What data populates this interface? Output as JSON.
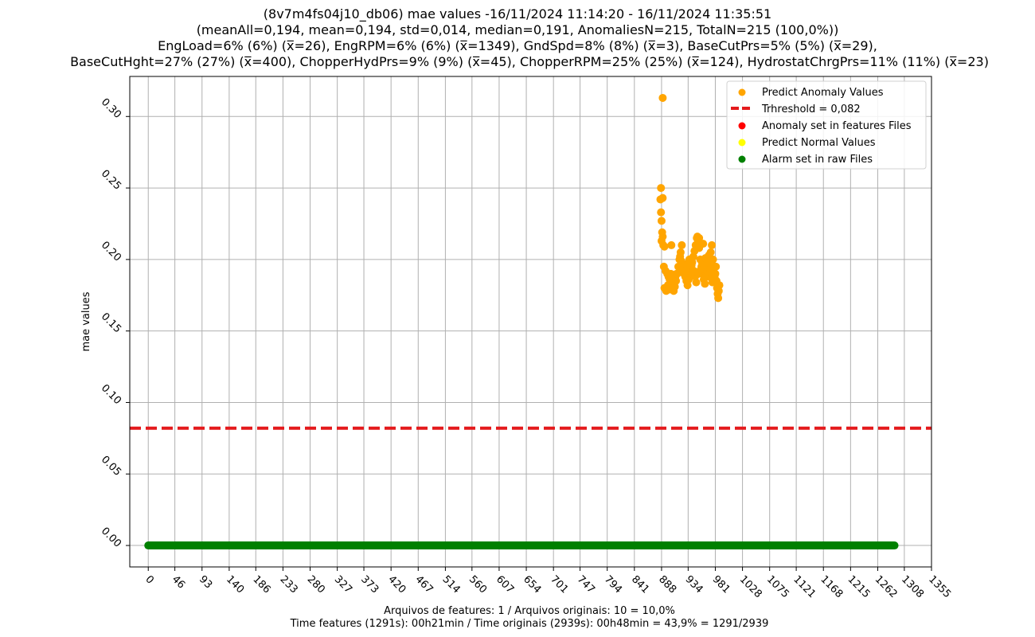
{
  "chart_data": {
    "type": "scatter",
    "title_lines": [
      "(8v7m4fs04j10_db06) mae values -16/11/2024 11:14:20 - 16/11/2024 11:35:51",
      "(meanAll=0,194, mean=0,194, std=0,014, median=0,191, AnomaliesN=215, TotalN=215 (100,0%))",
      "EngLoad=6% (6%) (x̅=26), EngRPM=6% (6%) (x̅=1349), GndSpd=8% (8%) (x̅=3), BaseCutPrs=5% (5%) (x̅=29),",
      "BaseCutHght=27% (27%) (x̅=400), ChopperHydPrs=9% (9%) (x̅=45), ChopperRPM=25% (25%) (x̅=124), HydrostatChrgPrs=11% (11%) (x̅=23)"
    ],
    "ylabel": "mae values",
    "xlabel_lines": [
      "Arquivos de features: 1 / Arquivos originais: 10 = 10,0%",
      "Time features (1291s): 00h21min / Time originais (2939s): 00h48min = 43,9% = 1291/2939"
    ],
    "xlim": [
      -32,
      1355
    ],
    "ylim": [
      -0.015,
      0.328
    ],
    "x_ticks": [
      0,
      46,
      93,
      140,
      186,
      233,
      280,
      327,
      373,
      420,
      467,
      514,
      560,
      607,
      654,
      701,
      747,
      794,
      841,
      888,
      934,
      981,
      1028,
      1075,
      1121,
      1168,
      1215,
      1262,
      1308,
      1355
    ],
    "y_ticks": [
      0.0,
      0.05,
      0.1,
      0.15,
      0.2,
      0.25,
      0.3
    ],
    "y_tick_labels": [
      "0.00",
      "0.05",
      "0.10",
      "0.15",
      "0.20",
      "0.25",
      "0.30"
    ],
    "grid": true,
    "legend_position": "top-right",
    "threshold": {
      "label": "Trhreshold = 0,082",
      "value": 0.082,
      "color": "#e41a1c"
    },
    "series": [
      {
        "name": "Predict Anomaly Values",
        "color": "#ffa500",
        "points": [
          [
            890,
            0.313
          ],
          [
            887,
            0.25
          ],
          [
            890,
            0.243
          ],
          [
            886,
            0.242
          ],
          [
            887,
            0.233
          ],
          [
            888,
            0.227
          ],
          [
            889,
            0.219
          ],
          [
            890,
            0.216
          ],
          [
            888,
            0.213
          ],
          [
            891,
            0.21
          ],
          [
            893,
            0.209
          ],
          [
            905,
            0.21
          ],
          [
            892,
            0.195
          ],
          [
            895,
            0.192
          ],
          [
            898,
            0.19
          ],
          [
            900,
            0.188
          ],
          [
            902,
            0.186
          ],
          [
            904,
            0.19
          ],
          [
            906,
            0.185
          ],
          [
            908,
            0.183
          ],
          [
            910,
            0.186
          ],
          [
            912,
            0.188
          ],
          [
            914,
            0.19
          ],
          [
            893,
            0.18
          ],
          [
            896,
            0.178
          ],
          [
            899,
            0.182
          ],
          [
            901,
            0.179
          ],
          [
            903,
            0.184
          ],
          [
            905,
            0.187
          ],
          [
            907,
            0.18
          ],
          [
            909,
            0.178
          ],
          [
            911,
            0.181
          ],
          [
            913,
            0.185
          ],
          [
            915,
            0.19
          ],
          [
            917,
            0.195
          ],
          [
            919,
            0.2
          ],
          [
            921,
            0.205
          ],
          [
            923,
            0.21
          ],
          [
            925,
            0.195
          ],
          [
            927,
            0.19
          ],
          [
            929,
            0.188
          ],
          [
            931,
            0.185
          ],
          [
            933,
            0.182
          ],
          [
            935,
            0.186
          ],
          [
            937,
            0.19
          ],
          [
            939,
            0.194
          ],
          [
            941,
            0.198
          ],
          [
            943,
            0.202
          ],
          [
            945,
            0.206
          ],
          [
            947,
            0.21
          ],
          [
            949,
            0.215
          ],
          [
            951,
            0.212
          ],
          [
            953,
            0.208
          ],
          [
            955,
            0.2
          ],
          [
            957,
            0.195
          ],
          [
            959,
            0.19
          ],
          [
            961,
            0.186
          ],
          [
            963,
            0.183
          ],
          [
            965,
            0.188
          ],
          [
            967,
            0.192
          ],
          [
            969,
            0.196
          ],
          [
            971,
            0.2
          ],
          [
            973,
            0.205
          ],
          [
            975,
            0.21
          ],
          [
            977,
            0.2
          ],
          [
            979,
            0.195
          ],
          [
            981,
            0.19
          ],
          [
            983,
            0.185
          ],
          [
            984,
            0.18
          ],
          [
            985,
            0.176
          ],
          [
            986,
            0.173
          ],
          [
            987,
            0.178
          ],
          [
            988,
            0.182
          ],
          [
            950,
            0.216
          ],
          [
            953,
            0.215
          ],
          [
            960,
            0.211
          ],
          [
            970,
            0.203
          ],
          [
            975,
            0.2
          ],
          [
            920,
            0.202
          ],
          [
            922,
            0.199
          ],
          [
            924,
            0.193
          ],
          [
            926,
            0.197
          ],
          [
            930,
            0.192
          ],
          [
            932,
            0.196
          ],
          [
            936,
            0.2
          ],
          [
            940,
            0.196
          ],
          [
            944,
            0.192
          ],
          [
            946,
            0.188
          ],
          [
            948,
            0.184
          ],
          [
            952,
            0.19
          ],
          [
            956,
            0.193
          ],
          [
            958,
            0.198
          ],
          [
            962,
            0.195
          ],
          [
            964,
            0.201
          ],
          [
            966,
            0.197
          ],
          [
            968,
            0.189
          ],
          [
            972,
            0.193
          ],
          [
            974,
            0.187
          ],
          [
            976,
            0.184
          ],
          [
            978,
            0.191
          ],
          [
            980,
            0.187
          ],
          [
            982,
            0.195
          ]
        ]
      },
      {
        "name": "Anomaly set in features Files",
        "color": "#ff0000",
        "points": []
      },
      {
        "name": "Predict Normal Values",
        "color": "#ffff00",
        "points": []
      },
      {
        "name": "Alarm set in raw Files",
        "color": "#008000",
        "x_range": [
          0,
          1291
        ],
        "y": 0.0
      }
    ]
  }
}
